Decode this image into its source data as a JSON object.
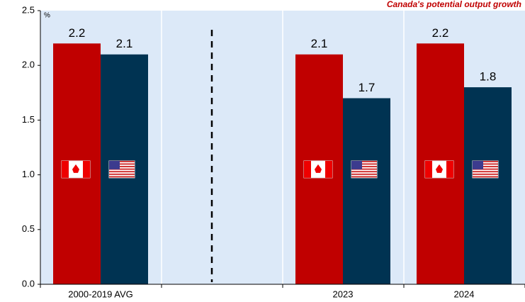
{
  "chart_data": {
    "type": "bar",
    "title": "Canada's potential output growth",
    "ylabel": "%",
    "categories": [
      "2000-2019 AVG",
      null,
      "2023",
      "2024"
    ],
    "series": [
      {
        "name": "Canada",
        "color": "#c00000",
        "values": [
          2.2,
          null,
          2.1,
          2.2
        ]
      },
      {
        "name": "United States",
        "color": "#003352",
        "values": [
          2.1,
          null,
          1.7,
          1.8
        ]
      }
    ],
    "ylim": [
      0,
      2.5
    ],
    "yticks": [
      {
        "value": 0,
        "label": "0.0"
      },
      0.5,
      {
        "value": 1,
        "label": "1.0"
      },
      1.5,
      {
        "value": 2,
        "label": "2.0"
      },
      2.5
    ],
    "grid": false,
    "background": "#dce9f8"
  }
}
